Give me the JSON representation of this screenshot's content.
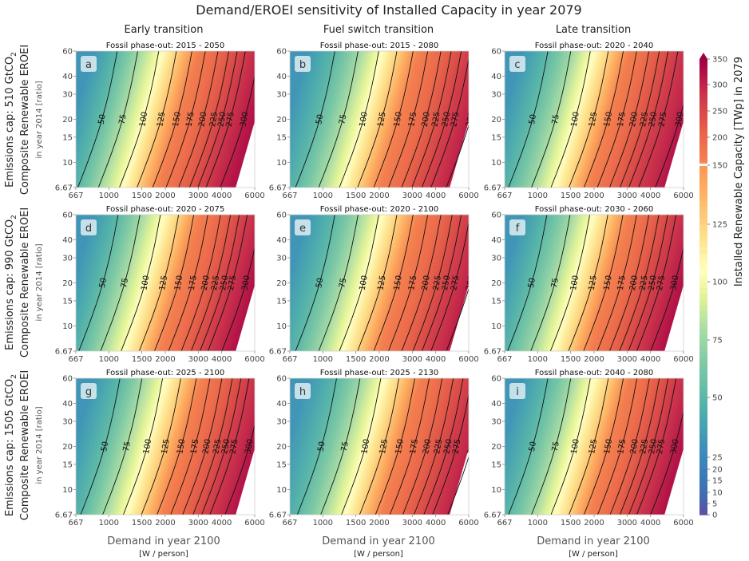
{
  "figure": {
    "title": "Demand/EROEI sensitivity of Installed Capacity in year 2079",
    "column_titles": [
      "Early transition",
      "Fuel switch transition",
      "Late transition"
    ],
    "row_label_line1": [
      "Emissions cap: 510 GtCO",
      "Emissions cap: 990 GtCO",
      "Emissions cap: 1505 GtCO"
    ],
    "row_label_sub": "2",
    "row_label_line2": "Composite Renewable EROEI",
    "row_label_line3": "in year 2014 [ratio]",
    "xlabel": "Demand in year 2100",
    "xlabel_units": "[W / person]",
    "colorbar_label": "Installed Renewable Capacity [TWp] in 2079"
  },
  "chart_data": {
    "type": "contour",
    "x_axis": {
      "scale": "log",
      "range": [
        667,
        6000
      ],
      "ticks": [
        667,
        1000,
        1500,
        2000,
        3000,
        4000,
        6000
      ]
    },
    "y_axis": {
      "scale": "log",
      "range": [
        6.67,
        60
      ],
      "ticks": [
        6.67,
        10,
        15,
        20,
        30,
        40,
        60
      ]
    },
    "contour_levels": [
      50,
      75,
      100,
      125,
      150,
      175,
      200,
      225,
      250,
      275,
      300
    ],
    "colorbar": {
      "ticks": [
        0,
        5,
        10,
        15,
        20,
        25,
        50,
        75,
        100,
        125,
        150,
        200,
        250,
        300,
        350
      ],
      "extend": "max"
    },
    "panels": [
      {
        "letter": "a",
        "subtitle": "Fossil phase-out: 2015 - 2050",
        "contours_at_y20": [
          {
            "level": 50,
            "x": 870
          },
          {
            "level": 75,
            "x": 1120
          },
          {
            "level": 100,
            "x": 1450
          },
          {
            "level": 125,
            "x": 1800
          },
          {
            "level": 150,
            "x": 2180
          },
          {
            "level": 175,
            "x": 2570
          },
          {
            "level": 200,
            "x": 3000
          },
          {
            "level": 225,
            "x": 3430
          },
          {
            "level": 250,
            "x": 3800
          },
          {
            "level": 275,
            "x": 4200
          },
          {
            "level": 300,
            "x": 5000
          }
        ]
      },
      {
        "letter": "b",
        "subtitle": "Fossil phase-out: 2015 - 2080",
        "contours_at_y20": [
          {
            "level": 50,
            "x": 910
          },
          {
            "level": 75,
            "x": 1210
          },
          {
            "level": 100,
            "x": 1560
          },
          {
            "level": 125,
            "x": 1950
          },
          {
            "level": 150,
            "x": 2380
          },
          {
            "level": 175,
            "x": 2850
          },
          {
            "level": 200,
            "x": 3350
          },
          {
            "level": 225,
            "x": 3800
          },
          {
            "level": 250,
            "x": 4300
          },
          {
            "level": 275,
            "x": 4800
          },
          {
            "level": 300,
            "x": 5800
          }
        ]
      },
      {
        "letter": "c",
        "subtitle": "Fossil phase-out: 2020 - 2040",
        "contours_at_y20": [
          {
            "level": 50,
            "x": 890
          },
          {
            "level": 75,
            "x": 1180
          },
          {
            "level": 100,
            "x": 1500
          },
          {
            "level": 125,
            "x": 1870
          },
          {
            "level": 150,
            "x": 2250
          },
          {
            "level": 175,
            "x": 2650
          },
          {
            "level": 200,
            "x": 3080
          },
          {
            "level": 225,
            "x": 3500
          },
          {
            "level": 250,
            "x": 3900
          },
          {
            "level": 275,
            "x": 4400
          },
          {
            "level": 300,
            "x": 5400
          }
        ]
      },
      {
        "letter": "d",
        "subtitle": "Fossil phase-out: 2020 - 2075",
        "contours_at_y20": [
          {
            "level": 50,
            "x": 880
          },
          {
            "level": 75,
            "x": 1150
          },
          {
            "level": 100,
            "x": 1480
          },
          {
            "level": 125,
            "x": 1850
          },
          {
            "level": 150,
            "x": 2230
          },
          {
            "level": 175,
            "x": 2650
          },
          {
            "level": 200,
            "x": 3100
          },
          {
            "level": 225,
            "x": 3500
          },
          {
            "level": 250,
            "x": 3900
          },
          {
            "level": 275,
            "x": 4300
          },
          {
            "level": 300,
            "x": 5100
          }
        ]
      },
      {
        "letter": "e",
        "subtitle": "Fossil phase-out: 2020 - 2100",
        "contours_at_y20": [
          {
            "level": 50,
            "x": 910
          },
          {
            "level": 75,
            "x": 1210
          },
          {
            "level": 100,
            "x": 1560
          },
          {
            "level": 125,
            "x": 1950
          },
          {
            "level": 150,
            "x": 2380
          },
          {
            "level": 175,
            "x": 2850
          },
          {
            "level": 200,
            "x": 3350
          },
          {
            "level": 225,
            "x": 3850
          },
          {
            "level": 250,
            "x": 4300
          },
          {
            "level": 275,
            "x": 4800
          },
          {
            "level": 300,
            "x": 5800
          }
        ]
      },
      {
        "letter": "f",
        "subtitle": "Fossil phase-out: 2030 - 2060",
        "contours_at_y20": [
          {
            "level": 50,
            "x": 880
          },
          {
            "level": 75,
            "x": 1170
          },
          {
            "level": 100,
            "x": 1490
          },
          {
            "level": 125,
            "x": 1860
          },
          {
            "level": 150,
            "x": 2240
          },
          {
            "level": 175,
            "x": 2650
          },
          {
            "level": 200,
            "x": 3080
          },
          {
            "level": 225,
            "x": 3480
          },
          {
            "level": 250,
            "x": 3880
          },
          {
            "level": 275,
            "x": 4300
          },
          {
            "level": 300,
            "x": 5100
          }
        ]
      },
      {
        "letter": "g",
        "subtitle": "Fossil phase-out: 2025 - 2100",
        "contours_at_y20": [
          {
            "level": 50,
            "x": 900
          },
          {
            "level": 75,
            "x": 1180
          },
          {
            "level": 100,
            "x": 1520
          },
          {
            "level": 125,
            "x": 1900
          },
          {
            "level": 150,
            "x": 2300
          },
          {
            "level": 175,
            "x": 2720
          },
          {
            "level": 200,
            "x": 3150
          },
          {
            "level": 225,
            "x": 3580
          },
          {
            "level": 250,
            "x": 3980
          },
          {
            "level": 275,
            "x": 4400
          },
          {
            "level": 300,
            "x": 5300
          }
        ]
      },
      {
        "letter": "h",
        "subtitle": "Fossil phase-out: 2025 - 2130",
        "contours_at_y20": [
          {
            "level": 50,
            "x": 930
          },
          {
            "level": 75,
            "x": 1240
          },
          {
            "level": 100,
            "x": 1600
          },
          {
            "level": 125,
            "x": 2000
          },
          {
            "level": 150,
            "x": 2430
          },
          {
            "level": 175,
            "x": 2900
          },
          {
            "level": 200,
            "x": 3400
          },
          {
            "level": 225,
            "x": 3900
          },
          {
            "level": 250,
            "x": 4400
          },
          {
            "level": 275,
            "x": 4900
          },
          {
            "level": 300,
            "x": 5900
          }
        ]
      },
      {
        "letter": "i",
        "subtitle": "Fossil phase-out: 2040 - 2080",
        "contours_at_y20": [
          {
            "level": 50,
            "x": 890
          },
          {
            "level": 75,
            "x": 1180
          },
          {
            "level": 100,
            "x": 1500
          },
          {
            "level": 125,
            "x": 1870
          },
          {
            "level": 150,
            "x": 2250
          },
          {
            "level": 175,
            "x": 2660
          },
          {
            "level": 200,
            "x": 3100
          },
          {
            "level": 225,
            "x": 3500
          },
          {
            "level": 250,
            "x": 3900
          },
          {
            "level": 275,
            "x": 4300
          },
          {
            "level": 300,
            "x": 5100
          }
        ]
      }
    ]
  }
}
